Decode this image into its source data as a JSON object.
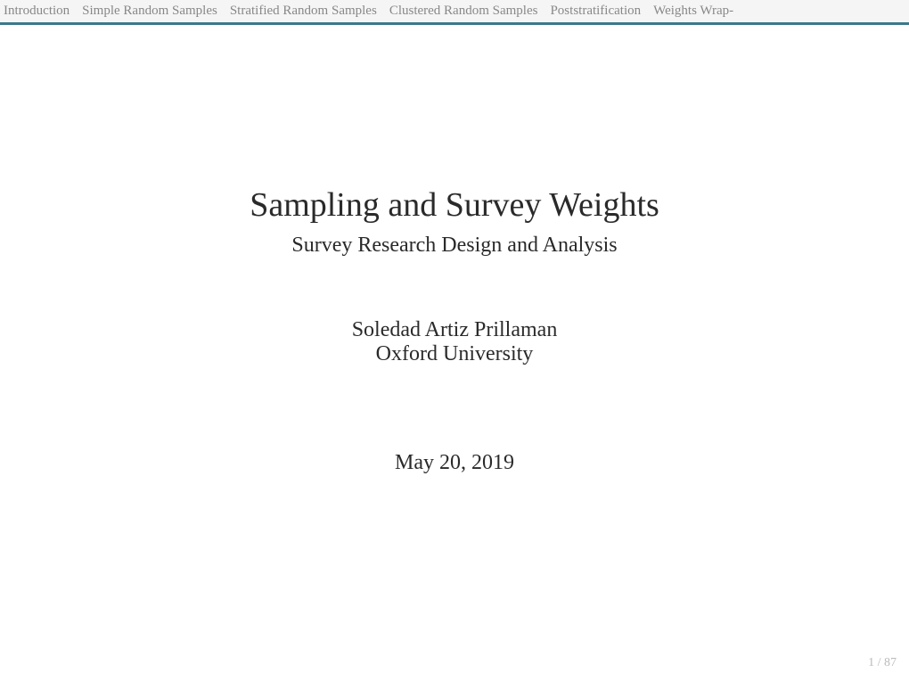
{
  "nav": {
    "items": [
      "Introduction",
      "Simple Random Samples",
      "Stratified Random Samples",
      "Clustered Random Samples",
      "Poststratification",
      "Weights Wrap-"
    ]
  },
  "slide": {
    "title": "Sampling and Survey Weights",
    "subtitle": "Survey Research Design and Analysis",
    "author": "Soledad Artiz Prillaman",
    "affiliation": "Oxford University",
    "date": "May 20, 2019"
  },
  "pagination": {
    "label": "1 / 87"
  },
  "colors": {
    "nav_background": "#f5f5f5",
    "nav_text": "#888888",
    "divider": "#3a7a8a",
    "body_text": "#2a2a2a",
    "page_number": "#bbbbbb",
    "background": "#ffffff"
  }
}
